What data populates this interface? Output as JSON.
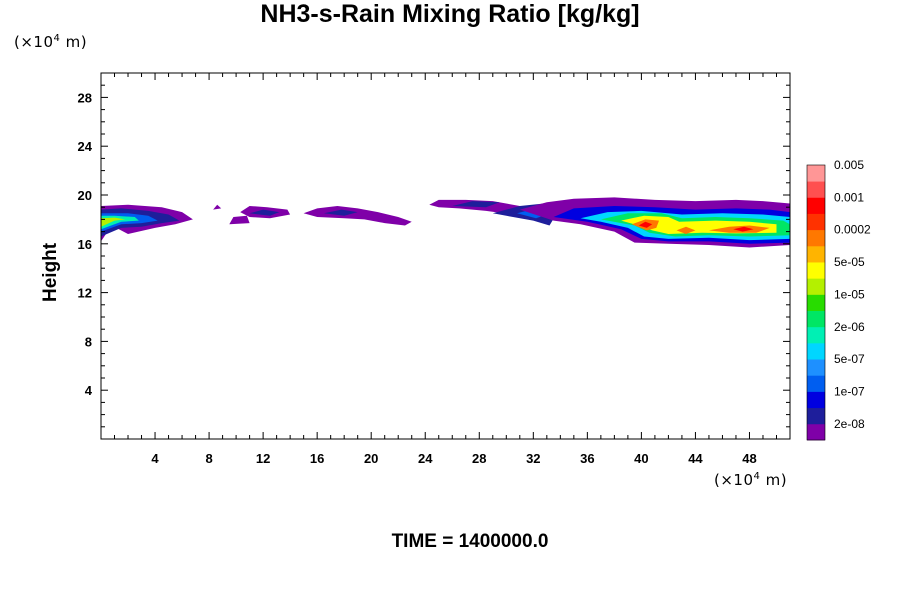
{
  "chart_data": {
    "type": "heatmap",
    "title": "NH3-s-Rain Mixing Ratio [kg/kg]",
    "ylabel": "Height",
    "x_unit_prefix": "(×10",
    "x_unit_exp": "4",
    "x_unit_suffix": " m)",
    "y_unit_prefix": "(×10",
    "y_unit_exp": "4",
    "y_unit_suffix": " m)",
    "footer": "TIME = 1400000.0",
    "xlim": [
      0,
      51
    ],
    "ylim": [
      0,
      30
    ],
    "xticks": [
      4,
      8,
      12,
      16,
      20,
      24,
      28,
      32,
      36,
      40,
      44,
      48
    ],
    "yticks": [
      4,
      8,
      12,
      16,
      20,
      24,
      28
    ],
    "colorbar": {
      "colors": [
        "#7f00a8",
        "#1e1e9b",
        "#0000e0",
        "#005ef0",
        "#1e90ff",
        "#00d6ff",
        "#00f0b4",
        "#00e664",
        "#28dc00",
        "#b4f000",
        "#ffff00",
        "#ffb400",
        "#ff7800",
        "#ff3200",
        "#ff0000",
        "#ff5050",
        "#ff9696"
      ],
      "labels": [
        "2e-08",
        "1e-07",
        "5e-07",
        "2e-06",
        "1e-05",
        "5e-05",
        "0.0002",
        "0.001",
        "0.005"
      ]
    },
    "regions": [
      {
        "level": 0,
        "points": [
          [
            0,
            16.2
          ],
          [
            0.8,
            17.5
          ],
          [
            2,
            16.8
          ],
          [
            4,
            17.3
          ],
          [
            5.5,
            17.6
          ],
          [
            6.8,
            18
          ],
          [
            6,
            18.6
          ],
          [
            4.5,
            19
          ],
          [
            2,
            19.2
          ],
          [
            0,
            19.1
          ]
        ]
      },
      {
        "level": 1,
        "points": [
          [
            0,
            16.6
          ],
          [
            1.5,
            17.3
          ],
          [
            3,
            17.4
          ],
          [
            4.5,
            17.7
          ],
          [
            5.8,
            17.9
          ],
          [
            5,
            18.4
          ],
          [
            3.5,
            18.7
          ],
          [
            1.5,
            18.9
          ],
          [
            0,
            18.8
          ]
        ]
      },
      {
        "level": 3,
        "points": [
          [
            0,
            17
          ],
          [
            1.5,
            17.6
          ],
          [
            3,
            17.7
          ],
          [
            4.2,
            17.9
          ],
          [
            3.5,
            18.3
          ],
          [
            2,
            18.5
          ],
          [
            0,
            18.5
          ]
        ]
      },
      {
        "level": 6,
        "points": [
          [
            0,
            17.2
          ],
          [
            1.5,
            17.8
          ],
          [
            2.8,
            17.9
          ],
          [
            2.5,
            18.2
          ],
          [
            1,
            18.3
          ],
          [
            0,
            18.3
          ]
        ]
      },
      {
        "level": 9,
        "points": [
          [
            0,
            17.4
          ],
          [
            1,
            17.9
          ],
          [
            1.8,
            18
          ],
          [
            1,
            18.15
          ],
          [
            0,
            18.1
          ]
        ]
      },
      {
        "level": 0,
        "points": [
          [
            8.3,
            18.8
          ],
          [
            8.6,
            19.2
          ],
          [
            8.9,
            18.9
          ]
        ]
      },
      {
        "level": 0,
        "points": [
          [
            10.3,
            18.6
          ],
          [
            11,
            19.1
          ],
          [
            12.3,
            19
          ],
          [
            13.8,
            18.8
          ],
          [
            14,
            18.4
          ],
          [
            12.5,
            18.1
          ],
          [
            11,
            18.2
          ]
        ]
      },
      {
        "level": 1,
        "points": [
          [
            11,
            18.5
          ],
          [
            12,
            18.8
          ],
          [
            13.2,
            18.6
          ],
          [
            12.5,
            18.3
          ]
        ]
      },
      {
        "level": 0,
        "points": [
          [
            9.5,
            17.6
          ],
          [
            9.8,
            18.2
          ],
          [
            10.8,
            18.3
          ],
          [
            11,
            17.7
          ]
        ]
      },
      {
        "level": 0,
        "points": [
          [
            15,
            18.5
          ],
          [
            16,
            18.9
          ],
          [
            17.5,
            19.1
          ],
          [
            19,
            18.9
          ],
          [
            20.5,
            18.6
          ],
          [
            22,
            18.2
          ],
          [
            23,
            17.8
          ],
          [
            22.5,
            17.5
          ],
          [
            21,
            17.7
          ],
          [
            19.5,
            18
          ],
          [
            18,
            18.1
          ],
          [
            16,
            18.2
          ]
        ]
      },
      {
        "level": 1,
        "points": [
          [
            16.5,
            18.5
          ],
          [
            17.8,
            18.8
          ],
          [
            19,
            18.6
          ],
          [
            18,
            18.3
          ]
        ]
      },
      {
        "level": 0,
        "points": [
          [
            24.3,
            19.2
          ],
          [
            25,
            19.6
          ],
          [
            27,
            19.6
          ],
          [
            29,
            19.5
          ],
          [
            31,
            19.1
          ],
          [
            32,
            18.6
          ],
          [
            30.5,
            18.4
          ],
          [
            28.5,
            18.7
          ],
          [
            26.5,
            18.9
          ],
          [
            25,
            19
          ]
        ]
      },
      {
        "level": 1,
        "points": [
          [
            26,
            19.1
          ],
          [
            27.5,
            19.5
          ],
          [
            29.5,
            19.4
          ],
          [
            28.5,
            19
          ]
        ]
      },
      {
        "level": 1,
        "points": [
          [
            29,
            18.5
          ],
          [
            31,
            19.1
          ],
          [
            32.8,
            19.3
          ],
          [
            33.8,
            18.6
          ],
          [
            33.2,
            17.5
          ],
          [
            32,
            17.9
          ],
          [
            30.5,
            18.2
          ]
        ]
      },
      {
        "level": 3,
        "points": [
          [
            30.8,
            18.5
          ],
          [
            32.2,
            18.9
          ],
          [
            33,
            18.4
          ],
          [
            32.2,
            18.1
          ]
        ]
      },
      {
        "level": 0,
        "points": [
          [
            31,
            18.8
          ],
          [
            33,
            19.4
          ],
          [
            35,
            19.7
          ],
          [
            38,
            19.8
          ],
          [
            41,
            19.6
          ],
          [
            44,
            19.5
          ],
          [
            47,
            19.6
          ],
          [
            49,
            19.5
          ],
          [
            51,
            19.3
          ],
          [
            51,
            15.9
          ],
          [
            48,
            15.7
          ],
          [
            45,
            15.9
          ],
          [
            42,
            16
          ],
          [
            39.5,
            16.1
          ],
          [
            38,
            17
          ],
          [
            35.5,
            17.6
          ],
          [
            33.5,
            17.9
          ]
        ]
      },
      {
        "level": 2,
        "points": [
          [
            33.5,
            18.2
          ],
          [
            35,
            18.9
          ],
          [
            38,
            19.1
          ],
          [
            41,
            19
          ],
          [
            44,
            18.8
          ],
          [
            47,
            18.9
          ],
          [
            49.5,
            18.8
          ],
          [
            51,
            18.6
          ],
          [
            51,
            16.1
          ],
          [
            48,
            16
          ],
          [
            45,
            16.2
          ],
          [
            42,
            16.2
          ],
          [
            40,
            16.4
          ],
          [
            38.5,
            17.2
          ],
          [
            36,
            17.8
          ]
        ]
      },
      {
        "level": 5,
        "points": [
          [
            35.5,
            18.1
          ],
          [
            37.5,
            18.6
          ],
          [
            40,
            18.7
          ],
          [
            43,
            18.4
          ],
          [
            46,
            18.5
          ],
          [
            49,
            18.4
          ],
          [
            51,
            18.2
          ],
          [
            51,
            16.4
          ],
          [
            48,
            16.3
          ],
          [
            45,
            16.5
          ],
          [
            42,
            16.4
          ],
          [
            40.2,
            16.6
          ],
          [
            39,
            17.3
          ],
          [
            37,
            17.8
          ]
        ]
      },
      {
        "level": 7,
        "points": [
          [
            37,
            18
          ],
          [
            39,
            18.5
          ],
          [
            41.5,
            18.5
          ],
          [
            43,
            18.1
          ],
          [
            45.5,
            18.2
          ],
          [
            48,
            18.1
          ],
          [
            50.5,
            17.9
          ],
          [
            51,
            17.6
          ],
          [
            51,
            16.7
          ],
          [
            48,
            16.6
          ],
          [
            45,
            16.7
          ],
          [
            42.5,
            16.6
          ],
          [
            40.6,
            16.9
          ],
          [
            39.5,
            17.5
          ]
        ]
      },
      {
        "level": 10,
        "points": [
          [
            38.5,
            17.9
          ],
          [
            40.2,
            18.3
          ],
          [
            42,
            18.2
          ],
          [
            42.8,
            17.8
          ],
          [
            45.5,
            17.9
          ],
          [
            48,
            17.8
          ],
          [
            50,
            17.6
          ],
          [
            50,
            16.9
          ],
          [
            47,
            16.85
          ],
          [
            44.5,
            16.9
          ],
          [
            42,
            16.8
          ],
          [
            40.8,
            17.1
          ],
          [
            39.8,
            17.5
          ]
        ]
      },
      {
        "level": 12,
        "points": [
          [
            39.3,
            17.6
          ],
          [
            40.3,
            18
          ],
          [
            41.3,
            17.9
          ],
          [
            41.1,
            17.3
          ],
          [
            40.4,
            17.1
          ]
        ]
      },
      {
        "level": 14,
        "points": [
          [
            39.8,
            17.5
          ],
          [
            40.3,
            17.8
          ],
          [
            40.8,
            17.6
          ],
          [
            40.4,
            17.3
          ]
        ]
      },
      {
        "level": 12,
        "points": [
          [
            42.6,
            17.1
          ],
          [
            43.3,
            17.4
          ],
          [
            44,
            17.1
          ],
          [
            43.3,
            16.8
          ]
        ]
      },
      {
        "level": 12,
        "points": [
          [
            45,
            17.1
          ],
          [
            46.5,
            17.4
          ],
          [
            48,
            17.5
          ],
          [
            49.5,
            17.3
          ],
          [
            48.5,
            16.9
          ],
          [
            46.5,
            16.9
          ]
        ]
      },
      {
        "level": 14,
        "points": [
          [
            46.8,
            17.2
          ],
          [
            47.6,
            17.4
          ],
          [
            48.3,
            17.2
          ],
          [
            47.5,
            17
          ]
        ]
      }
    ]
  }
}
